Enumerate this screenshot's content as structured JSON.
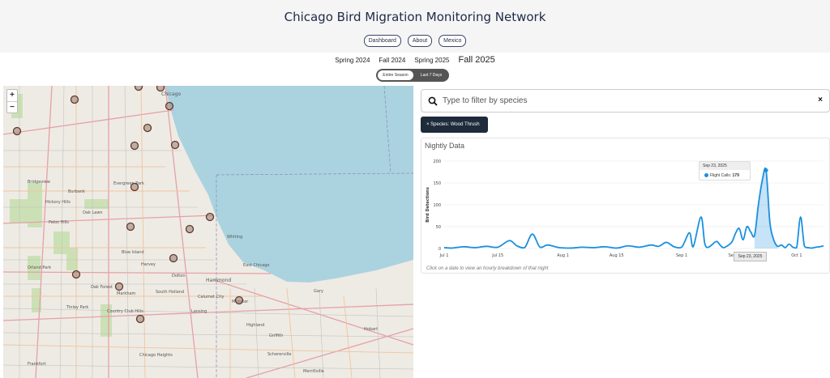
{
  "header": {
    "title": "Chicago Bird Migration Monitoring Network",
    "nav": [
      "Dashboard",
      "About",
      "Mexico"
    ]
  },
  "seasons": {
    "items": [
      "Spring 2024",
      "Fall 2024",
      "Spring 2025",
      "Fall 2025"
    ],
    "active": "Fall 2025"
  },
  "range_toggle": {
    "options": [
      "Entire Season",
      "Last 7 Days"
    ],
    "selected": "Entire Season"
  },
  "map": {
    "zoom_in": "+",
    "zoom_out": "−",
    "labels": [
      "Chicago",
      "East Chicago",
      "Gary",
      "Hammond",
      "Whiting",
      "Evergreen Park",
      "Oak Lawn",
      "Burbank",
      "Palos Hills",
      "Blue Island",
      "Harvey",
      "Orland Park",
      "Tinley Park",
      "Country Club Hills",
      "Chicago Heights",
      "Frankfort",
      "Markham",
      "Oak Forest",
      "Bridgeview",
      "Hickory Hills",
      "Highland",
      "Munster",
      "Lansing",
      "Merrillville",
      "Calumet City",
      "Hobart",
      "Griffith",
      "Schererville",
      "Dolton",
      "South Holland"
    ]
  },
  "search": {
    "placeholder": "Type to filter by species",
    "clear": "×"
  },
  "filter_chip": "× Species: Wood Thrush",
  "chart_panel": {
    "title": "Nightly Data",
    "hint": "Click on a date to view an hourly breakdown of that night",
    "tooltip": {
      "date": "Sep 23, 2025",
      "series": "Flight Calls",
      "value": "179"
    },
    "hover_x_label": "Sep 23, 2025"
  },
  "chart_data": {
    "type": "area",
    "ylabel": "Bird Detections",
    "ylim": [
      0,
      200
    ],
    "yticks": [
      "0",
      "50",
      "100",
      "150",
      "200"
    ],
    "xticks": [
      "Jul 1",
      "Jul 15",
      "Aug 1",
      "Aug 15",
      "Sep 1",
      "Sep 15",
      "Sep 23, 2025",
      "Oct 1"
    ],
    "color": "#1a8fe0",
    "series": [
      {
        "name": "Flight Calls",
        "x": [
          "Jul 1",
          "Jul 3",
          "Jul 6",
          "Jul 9",
          "Jul 12",
          "Jul 15",
          "Jul 18",
          "Jul 20",
          "Jul 22",
          "Jul 24",
          "Jul 26",
          "Jul 28",
          "Jul 31",
          "Aug 3",
          "Aug 6",
          "Aug 9",
          "Aug 12",
          "Aug 15",
          "Aug 18",
          "Aug 21",
          "Aug 24",
          "Aug 26",
          "Aug 28",
          "Aug 30",
          "Sep 1",
          "Sep 3",
          "Sep 4",
          "Sep 6",
          "Sep 7",
          "Sep 8",
          "Sep 10",
          "Sep 11",
          "Sep 12",
          "Sep 14",
          "Sep 15",
          "Sep 16",
          "Sep 17",
          "Sep 18",
          "Sep 19",
          "Sep 20",
          "Sep 21",
          "Sep 22",
          "Sep 23",
          "Sep 24",
          "Sep 25",
          "Sep 26",
          "Sep 27",
          "Sep 28",
          "Sep 29",
          "Sep 30",
          "Oct 1",
          "Oct 2",
          "Oct 3",
          "Oct 4",
          "Oct 5",
          "Oct 6",
          "Oct 7",
          "Oct 8"
        ],
        "values": [
          2,
          1,
          4,
          2,
          5,
          3,
          18,
          6,
          2,
          33,
          3,
          8,
          2,
          1,
          3,
          2,
          4,
          1,
          6,
          3,
          8,
          5,
          14,
          4,
          3,
          36,
          4,
          72,
          12,
          3,
          16,
          8,
          2,
          14,
          34,
          46,
          20,
          50,
          38,
          30,
          100,
          155,
          179,
          60,
          20,
          5,
          8,
          2,
          10,
          3,
          2,
          72,
          6,
          2,
          1,
          3,
          4,
          6
        ]
      }
    ]
  }
}
